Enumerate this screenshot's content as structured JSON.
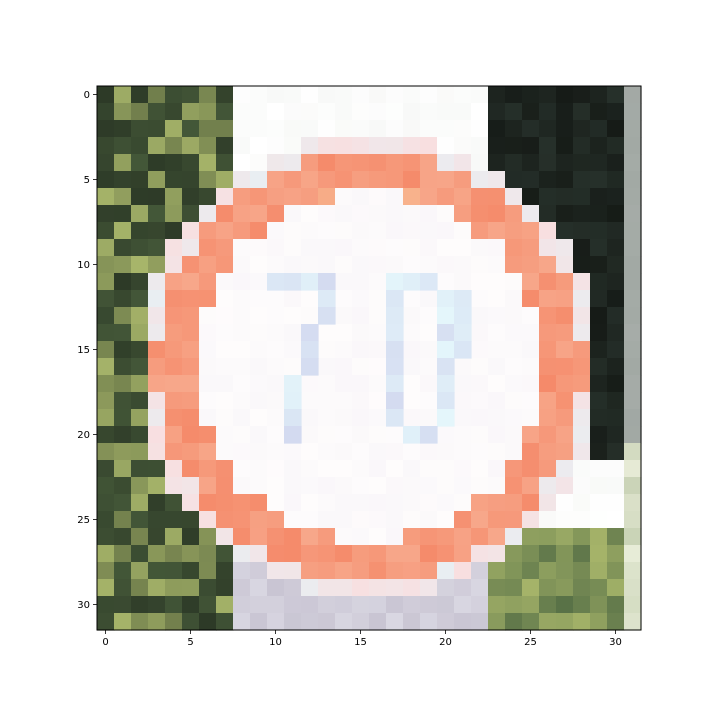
{
  "image": {
    "grid_size": 32,
    "content": "pixelated photo of circular speed limit road sign",
    "sign_number": "70",
    "colors": {
      "ring": "#f58a6a",
      "ring_inner": "#f7a78a",
      "ring_highlight": "#f9c79e",
      "sign_face": "#fefcfc",
      "digits": "#d2d8ef",
      "foliage_dark": "#2d3a27",
      "foliage_mid": "#566f46",
      "foliage_light": "#a7b56a",
      "sky": "#ffffff",
      "night_dark": "#161b17",
      "pole": "#a6aca8"
    }
  },
  "axes": {
    "x_ticks": [
      "0",
      "5",
      "10",
      "15",
      "20",
      "25",
      "30"
    ],
    "y_ticks": [
      "0",
      "5",
      "10",
      "15",
      "20",
      "25",
      "30"
    ],
    "x_range": [
      -0.5,
      31.5
    ],
    "y_range": [
      31.5,
      -0.5
    ]
  }
}
